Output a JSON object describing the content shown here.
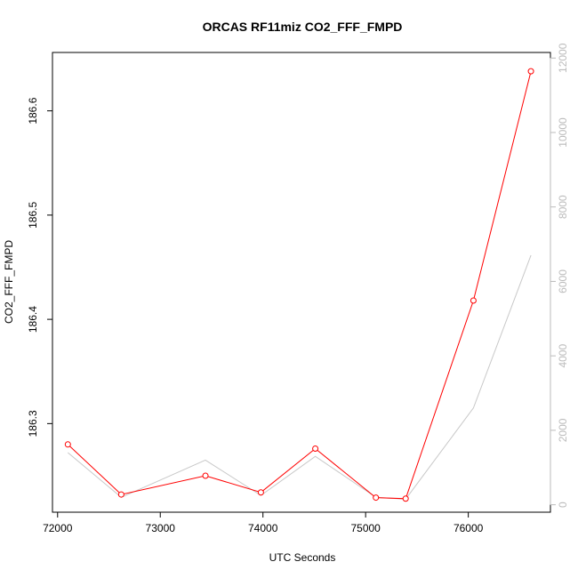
{
  "chart_data": {
    "type": "line",
    "title": "ORCAS RF11miz CO2_FFF_FMPD",
    "xlabel": "UTC Seconds",
    "ylabel": "CO2_FFF_FMPD",
    "x_ticks": [
      72000,
      73000,
      74000,
      75000,
      76000
    ],
    "y_ticks": [
      186.3,
      186.4,
      186.5,
      186.6
    ],
    "y2_ticks": [
      0,
      2000,
      4000,
      6000,
      8000,
      10000,
      12000
    ],
    "xlim": [
      71950,
      76800
    ],
    "ylim": [
      186.215,
      186.656
    ],
    "y2lim": [
      -200,
      12150
    ],
    "grid": false,
    "series": [
      {
        "color": "#ff0000",
        "marker": "open-circle",
        "axis": "left",
        "x": [
          72100,
          72620,
          73440,
          73980,
          74510,
          75100,
          75390,
          76050,
          76610
        ],
        "y": [
          186.28,
          186.232,
          186.25,
          186.234,
          186.276,
          186.229,
          186.228,
          186.418,
          186.638
        ]
      },
      {
        "color": "#c8c8c8",
        "marker": "none",
        "axis": "right",
        "x": [
          72100,
          72620,
          73440,
          73980,
          74510,
          75100,
          75390,
          76050,
          76610
        ],
        "y": [
          1400,
          200,
          1200,
          250,
          1300,
          200,
          150,
          2600,
          6700
        ]
      }
    ]
  }
}
